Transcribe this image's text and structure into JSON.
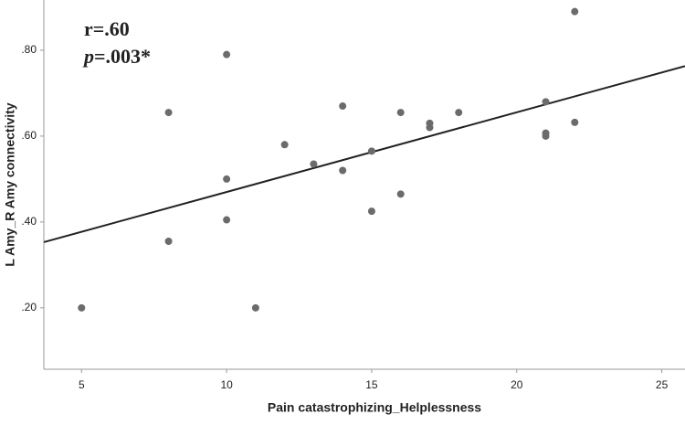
{
  "chart_data": {
    "type": "scatter",
    "x_label": "Pain catastrophizing_Helplessness",
    "y_label": "L Amy_R Amy connectivity",
    "annotation_r": "r=.60",
    "annotation_p": {
      "symbol": "p",
      "text": "=.003*"
    },
    "x": [
      5,
      10,
      8,
      10,
      10,
      8,
      11,
      12,
      13,
      14,
      14,
      15,
      15,
      16,
      16,
      17,
      17,
      18,
      21,
      21,
      21,
      22,
      22
    ],
    "y": [
      0.2,
      0.79,
      0.655,
      0.5,
      0.405,
      0.355,
      0.2,
      0.58,
      0.535,
      0.67,
      0.52,
      0.565,
      0.425,
      0.655,
      0.465,
      0.63,
      0.62,
      0.655,
      0.68,
      0.607,
      0.6,
      0.89,
      0.632
    ],
    "color": "#6b6b6b",
    "fit_line": {
      "x": [
        3.7,
        25.8
      ],
      "y": [
        0.353,
        0.763
      ],
      "color": "#222222"
    },
    "xlim": [
      3.7,
      25.8
    ],
    "xticks": [
      5,
      10,
      15,
      20,
      25
    ],
    "ylim": [
      0.057,
      0.917
    ],
    "yticks": [
      {
        "value": 0.2,
        "label": ".20"
      },
      {
        "value": 0.4,
        "label": ".40"
      },
      {
        "value": 0.6,
        "label": ".60"
      },
      {
        "value": 0.8,
        "label": ".80"
      }
    ]
  }
}
